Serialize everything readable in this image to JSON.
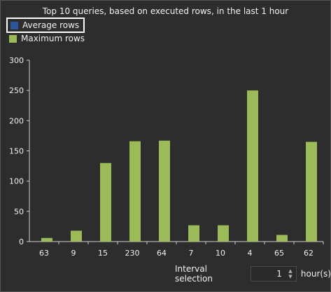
{
  "chart_data": {
    "type": "bar",
    "title": "Top 10 queries, based on executed rows, in the last 1 hour",
    "categories": [
      "63",
      "9",
      "15",
      "230",
      "64",
      "7",
      "10",
      "4",
      "65",
      "62"
    ],
    "series": [
      {
        "name": "Average rows",
        "color": "#2b579a",
        "values": [
          null,
          null,
          null,
          null,
          null,
          null,
          null,
          null,
          null,
          null
        ]
      },
      {
        "name": "Maximum rows",
        "color": "#9bbb59",
        "values": [
          6,
          18,
          130,
          166,
          167,
          27,
          27,
          250,
          11,
          165
        ]
      }
    ],
    "ylim": [
      0,
      300
    ],
    "yticks": [
      "0",
      "50",
      "100",
      "150",
      "200",
      "250",
      "300"
    ],
    "grid": false,
    "legend_position": "top-left"
  },
  "legend": {
    "average_label": "Average rows",
    "maximum_label": "Maximum rows"
  },
  "interval": {
    "label": "Interval selection",
    "value": "1",
    "unit": "hour(s)"
  }
}
